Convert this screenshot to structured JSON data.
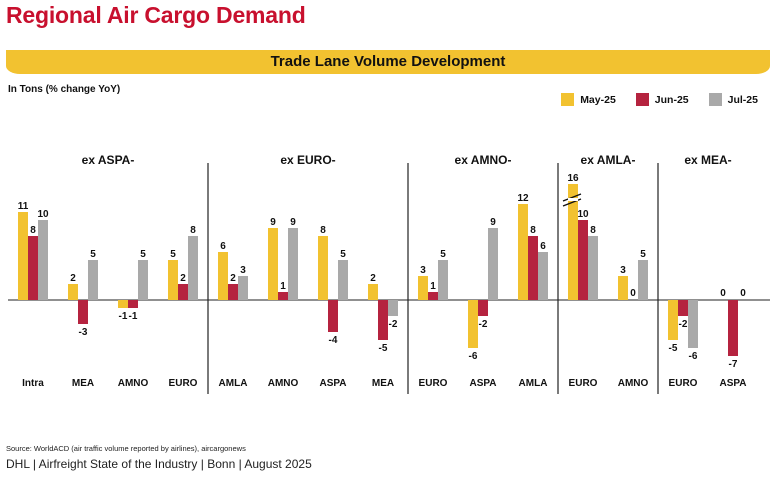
{
  "page": {
    "title": "Regional Air Cargo Demand",
    "banner": "Trade Lane Volume Development",
    "unit_label": "In Tons (% change YoY)",
    "source": "Source: WorldACD (air traffic volume reported by airlines), aircargonews",
    "footer": "DHL | Airfreight State of the Industry | Bonn | August 2025"
  },
  "colors": {
    "may": "#f2c230",
    "jun": "#b5233f",
    "jul": "#a9a9a9",
    "axis": "#222222"
  },
  "chart_data": {
    "type": "bar",
    "series": [
      {
        "name": "May-25",
        "color": "#f2c230"
      },
      {
        "name": "Jun-25",
        "color": "#b5233f"
      },
      {
        "name": "Jul-25",
        "color": "#a9a9a9"
      }
    ],
    "legend_position": "top-right",
    "groups": [
      {
        "label": "ex ASPA-",
        "categories": [
          {
            "label": "Intra",
            "values": [
              11,
              8,
              10
            ]
          },
          {
            "label": "MEA",
            "values": [
              2,
              -3,
              5
            ]
          },
          {
            "label": "AMNO",
            "values": [
              -1,
              -1,
              5
            ]
          },
          {
            "label": "EURO",
            "values": [
              5,
              2,
              8
            ]
          }
        ]
      },
      {
        "label": "ex EURO-",
        "categories": [
          {
            "label": "AMLA",
            "values": [
              6,
              2,
              3
            ]
          },
          {
            "label": "AMNO",
            "values": [
              9,
              1,
              9
            ]
          },
          {
            "label": "ASPA",
            "values": [
              8,
              -4,
              5
            ]
          },
          {
            "label": "MEA",
            "values": [
              2,
              -5,
              -2
            ]
          }
        ]
      },
      {
        "label": "ex AMNO-",
        "categories": [
          {
            "label": "EURO",
            "values": [
              3,
              1,
              5
            ]
          },
          {
            "label": "ASPA",
            "values": [
              -6,
              -2,
              9
            ]
          },
          {
            "label": "AMLA",
            "values": [
              12,
              8,
              6
            ]
          }
        ]
      },
      {
        "label": "ex AMLA-",
        "categories": [
          {
            "label": "EURO",
            "values": [
              16,
              10,
              8
            ],
            "axis_break": true
          },
          {
            "label": "AMNO",
            "values": [
              3,
              0,
              5
            ]
          }
        ]
      },
      {
        "label": "ex MEA-",
        "categories": [
          {
            "label": "EURO",
            "values": [
              -5,
              -2,
              -6
            ]
          },
          {
            "label": "ASPA",
            "values": [
              0,
              -7,
              0
            ]
          }
        ]
      }
    ]
  }
}
